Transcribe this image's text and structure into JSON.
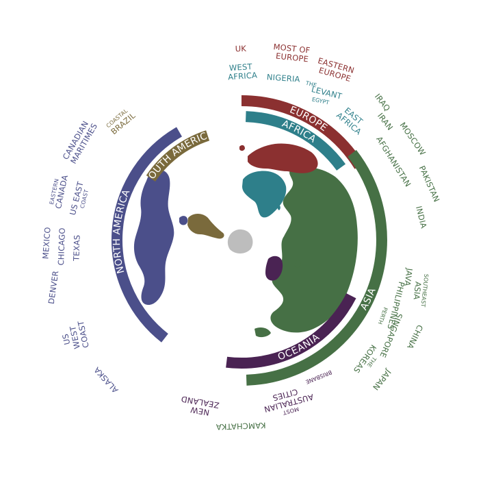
{
  "colors": {
    "europe": "#8b3030",
    "africa": "#2e7f8a",
    "asia": "#467045",
    "oceania": "#4a2353",
    "north_america": "#4b4f8a",
    "south_america": "#7a6a3c",
    "antarctica": "#bdbdbd"
  },
  "bands": {
    "europe": "EUROPE",
    "africa": "AFRICA",
    "asia": "ASIA",
    "oceania": "OCEANIA",
    "north_america": "NORTH AMERICA",
    "south_america": "SOUTH AMERICA"
  },
  "labels": {
    "uk": "UK",
    "most_of_europe": [
      "MOST OF",
      "EUROPE"
    ],
    "eastern_europe": [
      "EASTERN",
      "EUROPE"
    ],
    "west_africa": [
      "WEST",
      "AFRICA"
    ],
    "nigeria": "NIGERIA",
    "the_levant": [
      "THE",
      "LEVANT"
    ],
    "egypt": "EGYPT",
    "east_africa": [
      "EAST",
      "AFRICA"
    ],
    "iraq": "IRAQ",
    "iran": "IRAN",
    "moscow": "MOSCOW",
    "afghanistan": "AFGHANISTAN",
    "pakistan": "PAKISTAN",
    "india": "INDIA",
    "southeast_asia": [
      "SOUTHEAST",
      "ASIA"
    ],
    "java": "JAVA",
    "philippines": "PHILIPPINES",
    "perth": "PERTH",
    "singapore": "SINGAPORE",
    "china": "CHINA",
    "the_koreas": [
      "THE",
      "KOREAS"
    ],
    "japan": "JAPAN",
    "brisbane": "BRISBANE",
    "most_australian_cities": [
      "MOST",
      "AUSTRALIAN",
      "CITIES"
    ],
    "kamchatka": "KAMCHATKA",
    "new_zealand": [
      "NEW",
      "ZEALAND"
    ],
    "alaska": "ALASKA",
    "us_west_coast": [
      "US",
      "WEST",
      "COAST"
    ],
    "denver": "DENVER",
    "mexico": "MEXICO",
    "chicago": "CHICAGO",
    "texas": "TEXAS",
    "eastern_canada": [
      "EASTERN",
      "CANADA"
    ],
    "us_east_coast": [
      "US EAST",
      "COAST"
    ],
    "canadian_maritimes": [
      "CANADIAN",
      "MARITIMES"
    ],
    "coastal_brazil": [
      "COASTAL",
      "BRAZIL"
    ]
  }
}
